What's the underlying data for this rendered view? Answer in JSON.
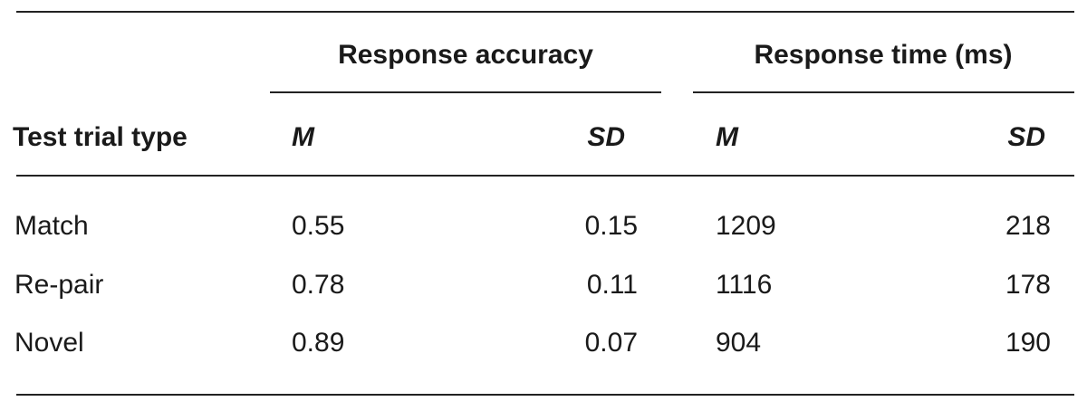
{
  "table": {
    "column_groups": [
      "Response accuracy",
      "Response time (ms)"
    ],
    "header": [
      "Test trial type",
      "M",
      "SD",
      "M",
      "SD"
    ],
    "rows": [
      [
        "Match",
        "0.55",
        "0.15",
        "1209",
        "218"
      ],
      [
        "Re-pair",
        "0.78",
        "0.11",
        "1116",
        "178"
      ],
      [
        "Novel",
        "0.89",
        "0.07",
        "904",
        "190"
      ]
    ]
  }
}
